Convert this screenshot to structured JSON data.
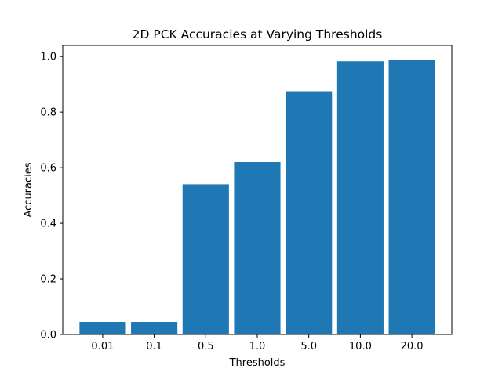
{
  "chart_data": {
    "type": "bar",
    "title": "2D PCK Accuracies at Varying Thresholds",
    "xlabel": "Thresholds",
    "ylabel": "Accuracies",
    "categories": [
      "0.01",
      "0.1",
      "0.5",
      "1.0",
      "5.0",
      "10.0",
      "20.0"
    ],
    "values": [
      0.045,
      0.045,
      0.54,
      0.62,
      0.875,
      0.983,
      0.988
    ],
    "ylim": [
      0,
      1.04
    ],
    "yticks": [
      "0.0",
      "0.2",
      "0.4",
      "0.6",
      "0.8",
      "1.0"
    ],
    "grid": false,
    "legend": "none",
    "colors": {
      "bar": "#1f77b4",
      "axis": "#000000"
    }
  }
}
